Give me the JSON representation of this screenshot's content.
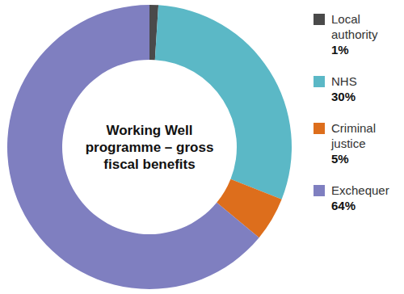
{
  "chart_data": {
    "type": "pie",
    "title": "Working Well programme – gross fiscal benefits",
    "categories": [
      "Local authority",
      "NHS",
      "Criminal justice",
      "Exchequer"
    ],
    "values": [
      1,
      30,
      5,
      64
    ],
    "value_labels": [
      "1%",
      "30%",
      "5%",
      "64%"
    ],
    "colors": [
      "#4a4a4a",
      "#5bb8c6",
      "#dd6e1c",
      "#7f7fc0"
    ]
  }
}
